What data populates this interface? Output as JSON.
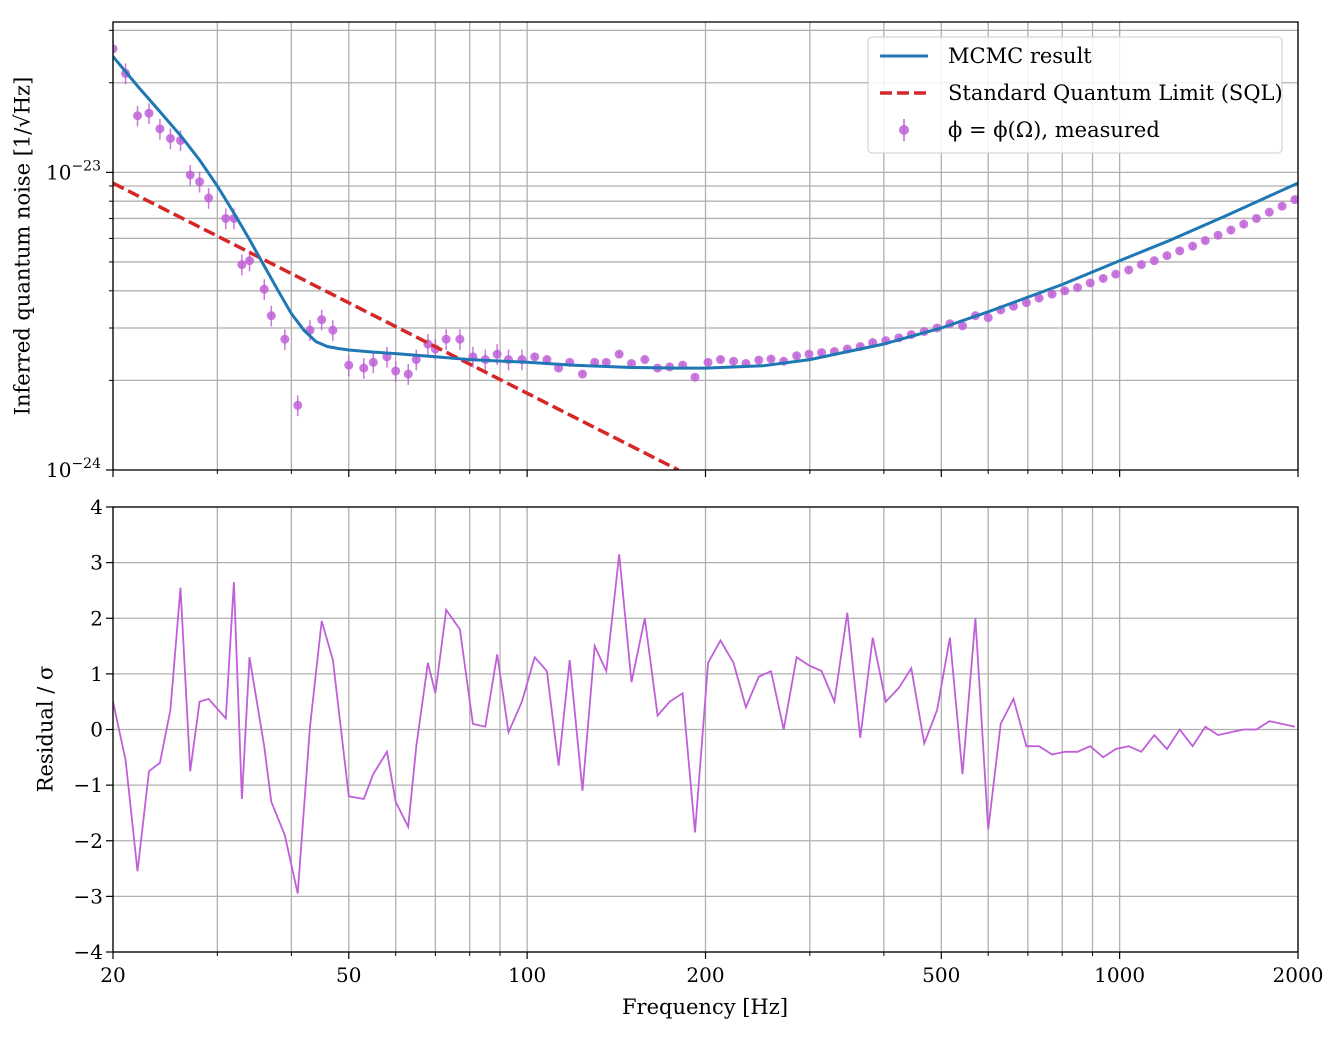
{
  "chart_data": [
    {
      "type": "line",
      "panel": "top",
      "xscale": "log",
      "yscale": "log",
      "xlim": [
        20,
        2000
      ],
      "ylim": [
        1e-24,
        3.2e-23
      ],
      "ylabel": "Inferred quantum noise [1/√Hz]",
      "ytick_labels": [
        {
          "value": 1e-23,
          "base": "10",
          "exp": "−23"
        },
        {
          "value": 1e-24,
          "base": "10",
          "exp": "−24"
        }
      ],
      "grid": true,
      "legend_position": "upper right",
      "series": [
        {
          "name": "MCMC result",
          "kind": "line",
          "color": "#1f77b4",
          "x": [
            20,
            22,
            24,
            26,
            28,
            30,
            32,
            34,
            36,
            38,
            40,
            42,
            44,
            46,
            48,
            50,
            55,
            60,
            70,
            80,
            100,
            120,
            150,
            180,
            200,
            250,
            300,
            400,
            500,
            600,
            800,
            1000,
            1200,
            1500,
            2000
          ],
          "y": [
            2.45e-23,
            1.95e-23,
            1.6e-23,
            1.33e-23,
            1.1e-23,
            9e-24,
            7.3e-24,
            5.95e-24,
            4.85e-24,
            4e-24,
            3.35e-24,
            2.95e-24,
            2.7e-24,
            2.6e-24,
            2.56e-24,
            2.53e-24,
            2.49e-24,
            2.46e-24,
            2.4e-24,
            2.35e-24,
            2.3e-24,
            2.25e-24,
            2.21e-24,
            2.2e-24,
            2.2e-24,
            2.24e-24,
            2.35e-24,
            2.65e-24,
            3e-24,
            3.4e-24,
            4.2e-24,
            5.05e-24,
            5.85e-24,
            7.1e-24,
            9.2e-24
          ]
        },
        {
          "name": "Standard Quantum Limit (SQL)",
          "kind": "dashed",
          "color": "#d62728",
          "x": [
            20,
            180
          ],
          "y": [
            9.2e-24,
            1e-24
          ]
        },
        {
          "name": "ϕ = ϕ(Ω), measured",
          "kind": "errorbar",
          "color": "#c060d8",
          "x": [
            20,
            21,
            22,
            23,
            24,
            25,
            26,
            27,
            28,
            29,
            31,
            32,
            33,
            34,
            36,
            37,
            39,
            41,
            43,
            45,
            47,
            50,
            53,
            55,
            58,
            60,
            63,
            65,
            68,
            70,
            73,
            77,
            81,
            85,
            89,
            93,
            98,
            103,
            108,
            113,
            118,
            124,
            130,
            136,
            143,
            150,
            158,
            166,
            174,
            183,
            192,
            202,
            212,
            223,
            234,
            246,
            258,
            271,
            285,
            299,
            314,
            330,
            347,
            365,
            383,
            403,
            424,
            445,
            468,
            492,
            517,
            543,
            571,
            600,
            630,
            662,
            696,
            731,
            769,
            808,
            849,
            892,
            938,
            985,
            1036,
            1088,
            1144,
            1202,
            1263,
            1328,
            1395,
            1466,
            1541,
            1620,
            1702,
            1789,
            1880,
            1976
          ],
          "y": [
            2.6e-23,
            2.15e-23,
            1.55e-23,
            1.58e-23,
            1.4e-23,
            1.3e-23,
            1.28e-23,
            9.8e-24,
            9.3e-24,
            8.2e-24,
            7e-24,
            7e-24,
            4.9e-24,
            5.05e-24,
            4.05e-24,
            3.3e-24,
            2.75e-24,
            1.65e-24,
            2.95e-24,
            3.2e-24,
            2.95e-24,
            2.25e-24,
            2.2e-24,
            2.3e-24,
            2.4e-24,
            2.15e-24,
            2.1e-24,
            2.35e-24,
            2.65e-24,
            2.55e-24,
            2.75e-24,
            2.75e-24,
            2.4e-24,
            2.35e-24,
            2.45e-24,
            2.35e-24,
            2.35e-24,
            2.4e-24,
            2.35e-24,
            2.2e-24,
            2.3e-24,
            2.1e-24,
            2.3e-24,
            2.3e-24,
            2.45e-24,
            2.28e-24,
            2.35e-24,
            2.2e-24,
            2.22e-24,
            2.25e-24,
            2.05e-24,
            2.3e-24,
            2.35e-24,
            2.32e-24,
            2.28e-24,
            2.34e-24,
            2.36e-24,
            2.32e-24,
            2.42e-24,
            2.45e-24,
            2.48e-24,
            2.5e-24,
            2.55e-24,
            2.6e-24,
            2.68e-24,
            2.72e-24,
            2.78e-24,
            2.85e-24,
            2.92e-24,
            3e-24,
            3.1e-24,
            3.05e-24,
            3.3e-24,
            3.25e-24,
            3.45e-24,
            3.55e-24,
            3.65e-24,
            3.78e-24,
            3.9e-24,
            4e-24,
            4.1e-24,
            4.25e-24,
            4.4e-24,
            4.55e-24,
            4.7e-24,
            4.9e-24,
            5.05e-24,
            5.25e-24,
            5.45e-24,
            5.65e-24,
            5.9e-24,
            6.15e-24,
            6.4e-24,
            6.7e-24,
            7e-24,
            7.35e-24,
            7.7e-24,
            8.1e-24
          ]
        }
      ]
    },
    {
      "type": "line",
      "panel": "bottom",
      "xscale": "log",
      "xlim": [
        20,
        2000
      ],
      "ylim": [
        -4,
        4
      ],
      "xlabel": "Frequency [Hz]",
      "ylabel": "Residual / σ",
      "x_ticks": [
        20,
        50,
        100,
        200,
        500,
        1000,
        2000
      ],
      "x_tick_labels": [
        "20",
        "50",
        "100",
        "200",
        "500",
        "1000",
        "2000"
      ],
      "y_ticks": [
        4,
        3,
        2,
        1,
        0,
        -1,
        -2,
        -3,
        -4
      ],
      "y_tick_labels": [
        "4",
        "3",
        "2",
        "1",
        "0",
        "−1",
        "−2",
        "−3",
        "−4"
      ],
      "grid": true,
      "series": [
        {
          "kind": "line",
          "color": "#c060d8",
          "x": [
            20,
            21,
            22,
            23,
            24,
            25,
            26,
            27,
            28,
            29,
            31,
            32,
            33,
            34,
            36,
            37,
            39,
            41,
            43,
            45,
            47,
            50,
            53,
            55,
            58,
            60,
            63,
            65,
            68,
            70,
            73,
            77,
            81,
            85,
            89,
            93,
            98,
            103,
            108,
            113,
            118,
            124,
            130,
            136,
            143,
            150,
            158,
            166,
            174,
            183,
            192,
            202,
            212,
            223,
            234,
            246,
            258,
            271,
            285,
            299,
            314,
            330,
            347,
            365,
            383,
            403,
            424,
            445,
            468,
            492,
            517,
            543,
            571,
            600,
            630,
            662,
            696,
            731,
            769,
            808,
            849,
            892,
            938,
            985,
            1036,
            1088,
            1144,
            1202,
            1263,
            1328,
            1395,
            1466,
            1541,
            1620,
            1702,
            1789,
            1880,
            1976
          ],
          "y": [
            0.5,
            -0.55,
            -2.55,
            -0.75,
            -0.6,
            0.35,
            2.55,
            -0.75,
            0.5,
            0.55,
            0.2,
            2.65,
            -1.25,
            1.3,
            -0.3,
            -1.3,
            -1.9,
            -2.95,
            0.05,
            1.95,
            1.25,
            -1.2,
            -1.25,
            -0.8,
            -0.4,
            -1.3,
            -1.75,
            -0.3,
            1.2,
            0.65,
            2.15,
            1.8,
            0.1,
            0.05,
            1.35,
            -0.05,
            0.5,
            1.3,
            1.05,
            -0.65,
            1.25,
            -1.1,
            1.5,
            1.05,
            3.15,
            0.85,
            2.0,
            0.25,
            0.5,
            0.65,
            -1.85,
            1.2,
            1.6,
            1.2,
            0.4,
            0.95,
            1.05,
            0.0,
            1.3,
            1.15,
            1.05,
            0.5,
            2.1,
            -0.15,
            1.65,
            0.5,
            0.75,
            1.1,
            -0.25,
            0.35,
            1.65,
            -0.8,
            2.0,
            -1.8,
            0.1,
            0.55,
            -0.3,
            -0.3,
            -0.45,
            -0.4,
            -0.4,
            -0.3,
            -0.5,
            -0.35,
            -0.3,
            -0.4,
            -0.1,
            -0.35,
            0.0,
            -0.3,
            0.05,
            -0.1,
            -0.05,
            0.0,
            0.0,
            0.15,
            0.1,
            0.05
          ]
        }
      ]
    }
  ]
}
